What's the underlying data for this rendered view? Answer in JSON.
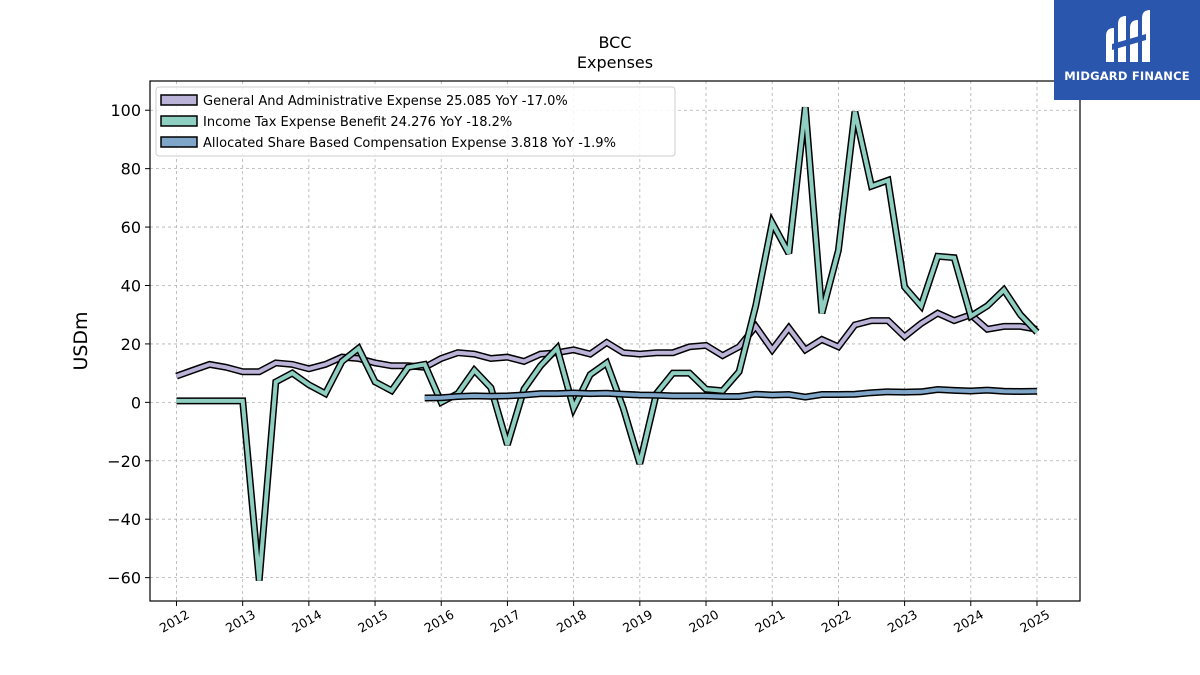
{
  "brand": {
    "name": "MIDGARD FINANCE",
    "color": "#2a56ad"
  },
  "chart_data": {
    "type": "line",
    "title": "BCC",
    "subtitle": "Expenses",
    "ylabel": "USDm",
    "xlabel": "",
    "ylim": [
      -68,
      110
    ],
    "xlim": [
      2011.6,
      2025.65
    ],
    "yticks": [
      -60,
      -40,
      -20,
      0,
      20,
      40,
      60,
      80,
      100
    ],
    "ytick_labels": [
      "−60",
      "−40",
      "−20",
      "0",
      "20",
      "40",
      "60",
      "80",
      "100"
    ],
    "xticks": [
      2012,
      2013,
      2014,
      2015,
      2016,
      2017,
      2018,
      2019,
      2020,
      2021,
      2022,
      2023,
      2024,
      2025
    ],
    "xtick_labels": [
      "2012",
      "2013",
      "2014",
      "2015",
      "2016",
      "2017",
      "2018",
      "2019",
      "2020",
      "2021",
      "2022",
      "2023",
      "2024",
      "2025"
    ],
    "grid": true,
    "legend_position": "top-left",
    "series": [
      {
        "name": "General And Administrative Expense  25.085 YoY -17.0%",
        "color": "#bcb3d9",
        "x": [
          2012.0,
          2012.25,
          2012.5,
          2012.75,
          2013.0,
          2013.25,
          2013.5,
          2013.75,
          2014.0,
          2014.25,
          2014.5,
          2014.75,
          2015.0,
          2015.25,
          2015.5,
          2015.75,
          2016.0,
          2016.25,
          2016.5,
          2016.75,
          2017.0,
          2017.25,
          2017.5,
          2017.75,
          2018.0,
          2018.25,
          2018.5,
          2018.75,
          2019.0,
          2019.25,
          2019.5,
          2019.75,
          2020.0,
          2020.25,
          2020.5,
          2020.75,
          2021.0,
          2021.25,
          2021.5,
          2021.75,
          2022.0,
          2022.25,
          2022.5,
          2022.75,
          2023.0,
          2023.25,
          2023.5,
          2023.75,
          2024.0,
          2024.25,
          2024.5,
          2024.75,
          2025.0
        ],
        "values": [
          9,
          11,
          13,
          12,
          10.5,
          10.5,
          13.5,
          13,
          11.5,
          13,
          15.5,
          15,
          13.5,
          12.5,
          12.5,
          12,
          15,
          17,
          16.5,
          15,
          15.5,
          14,
          16.5,
          17,
          18,
          16.5,
          20.5,
          17,
          16.5,
          17,
          17,
          19,
          19.5,
          16,
          19,
          26,
          18,
          25.5,
          18,
          21.5,
          19,
          26.5,
          28,
          28,
          22.5,
          27,
          30.5,
          28,
          30,
          25,
          26,
          26,
          25
        ]
      },
      {
        "name": "Income Tax Expense Benefit  24.276 YoY -18.2%",
        "color": "#8ecfc2",
        "x": [
          2012.0,
          2012.25,
          2012.5,
          2012.75,
          2013.0,
          2013.25,
          2013.5,
          2013.75,
          2014.0,
          2014.25,
          2014.5,
          2014.75,
          2015.0,
          2015.25,
          2015.5,
          2015.75,
          2016.0,
          2016.25,
          2016.5,
          2016.75,
          2017.0,
          2017.25,
          2017.5,
          2017.75,
          2018.0,
          2018.25,
          2018.5,
          2018.75,
          2019.0,
          2019.25,
          2019.5,
          2019.75,
          2020.0,
          2020.25,
          2020.5,
          2020.75,
          2021.0,
          2021.25,
          2021.5,
          2021.75,
          2022.0,
          2022.25,
          2022.5,
          2022.75,
          2023.0,
          2023.25,
          2023.5,
          2023.75,
          2024.0,
          2024.25,
          2024.5,
          2024.75,
          2025.0
        ],
        "values": [
          0.5,
          0.5,
          0.5,
          0.5,
          0.5,
          -61,
          7,
          10,
          6,
          3,
          14,
          18.5,
          7,
          4,
          12,
          13,
          0,
          3,
          11,
          5,
          -14.5,
          4.5,
          12.5,
          18.5,
          -2,
          9.5,
          13.5,
          -2,
          -21,
          3,
          10,
          10,
          4.5,
          4,
          10.5,
          33,
          61.5,
          51,
          101,
          30.5,
          52,
          99.5,
          74,
          76,
          39.5,
          33,
          50,
          49.5,
          29.5,
          33,
          38.5,
          30,
          24
        ]
      },
      {
        "name": "Allocated Share Based Compensation Expense  3.818 YoY -1.9%",
        "color": "#7fa6c8",
        "x": [
          2015.75,
          2016.0,
          2016.25,
          2016.5,
          2016.75,
          2017.0,
          2017.25,
          2017.5,
          2017.75,
          2018.0,
          2018.25,
          2018.5,
          2018.75,
          2019.0,
          2019.25,
          2019.5,
          2019.75,
          2020.0,
          2020.25,
          2020.5,
          2020.75,
          2021.0,
          2021.25,
          2021.5,
          2021.75,
          2022.0,
          2022.25,
          2022.5,
          2022.75,
          2023.0,
          2023.25,
          2023.5,
          2023.75,
          2024.0,
          2024.25,
          2024.5,
          2024.75,
          2025.0
        ],
        "values": [
          1.5,
          1.6,
          2,
          2.2,
          2.1,
          2.2,
          2.5,
          3,
          3,
          3.2,
          3,
          3.1,
          2.8,
          2.5,
          2.4,
          2.2,
          2.2,
          2.2,
          2,
          2,
          2.8,
          2.5,
          2.7,
          1.8,
          2.7,
          2.7,
          2.8,
          3.3,
          3.6,
          3.5,
          3.6,
          4.4,
          4.1,
          3.9,
          4.2,
          3.8,
          3.7,
          3.8
        ]
      }
    ]
  }
}
